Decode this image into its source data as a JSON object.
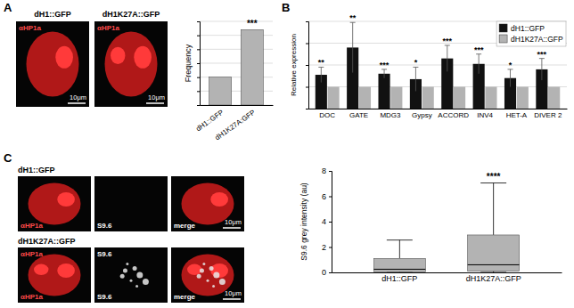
{
  "chart_data": [
    {
      "panel": "A",
      "type": "bar",
      "categories": [
        "dH1::GFP",
        "dH1K27A:GFP"
      ],
      "values": [
        1,
        2.7
      ],
      "color": "#b3b3b3",
      "y_label": "Frequency",
      "ylim": [
        0,
        3
      ],
      "yticks": [
        0,
        0.5,
        1,
        1.5,
        2,
        2.5,
        3
      ],
      "grid": true,
      "tick_labels": "x",
      "annotations": [
        {
          "text": "***",
          "category": "dH1K27A:GFP"
        }
      ]
    },
    {
      "panel": "B",
      "type": "bar",
      "categories": [
        "DOC",
        "GATE",
        "MDG3",
        "Gypsy",
        "ACCORD",
        "INV4",
        "HET-A",
        "DIVER 2"
      ],
      "series": [
        {
          "name": "dH1::GFP",
          "color": "#111111",
          "values": [
            1.55,
            2.8,
            1.6,
            1.35,
            2.3,
            2.05,
            1.4,
            1.8
          ],
          "errors": [
            0.35,
            1.15,
            0.2,
            0.55,
            0.6,
            0.45,
            0.4,
            0.5
          ]
        },
        {
          "name": "dH1K27A::GFP",
          "color": "#b3b3b3",
          "values": [
            1,
            1,
            1,
            1,
            1,
            1,
            1,
            1
          ]
        }
      ],
      "significance": [
        "**",
        "**",
        "***",
        "*",
        "***",
        "***",
        "*",
        "***"
      ],
      "y_label": "Relative expression",
      "ylim": [
        0,
        4
      ],
      "yticks": [
        0,
        1,
        2,
        3,
        4
      ],
      "grid": true,
      "legend": "top-right",
      "tick_labels": "x"
    },
    {
      "panel": "C",
      "type": "box",
      "categories": [
        "dH1::GFP",
        "dH1K27A::GFP"
      ],
      "min": [
        0,
        0
      ],
      "q1": [
        0.05,
        0.1
      ],
      "median": [
        0.25,
        0.6
      ],
      "q3": [
        1.1,
        2.95
      ],
      "max": [
        2.55,
        7.05
      ],
      "color": "#b3b3b3",
      "y_label": "S9.6 grey intensity (au)",
      "ylim": [
        0,
        8
      ],
      "yticks": [
        0,
        2,
        4,
        6,
        8
      ],
      "annotations": [
        {
          "text": "****",
          "category": "dH1K27A::GFP"
        }
      ]
    }
  ],
  "images_A": [
    {
      "title": "dH1::GFP",
      "labels": [
        "αHP1a"
      ],
      "scale_bar": "10μm"
    },
    {
      "title": "dH1K27A::GFP",
      "labels": [
        "αHP1a"
      ],
      "scale_bar": "10μm"
    }
  ],
  "images_C": [
    {
      "title": "dH1::GFP",
      "cells": [
        {
          "labels": [
            "αHP1a"
          ]
        },
        {
          "labels": [
            "S9.6"
          ]
        },
        {
          "labels": [
            "merge"
          ],
          "scale_bar": "10μm"
        }
      ]
    },
    {
      "title": "dH1K27A::GFP",
      "cells": [
        {
          "labels": [
            "αHP1a",
            "αHP1a"
          ]
        },
        {
          "labels": [
            "S9.6",
            "S9.6"
          ]
        },
        {
          "labels": [
            "merge"
          ],
          "scale_bar": "10μm"
        }
      ]
    }
  ]
}
